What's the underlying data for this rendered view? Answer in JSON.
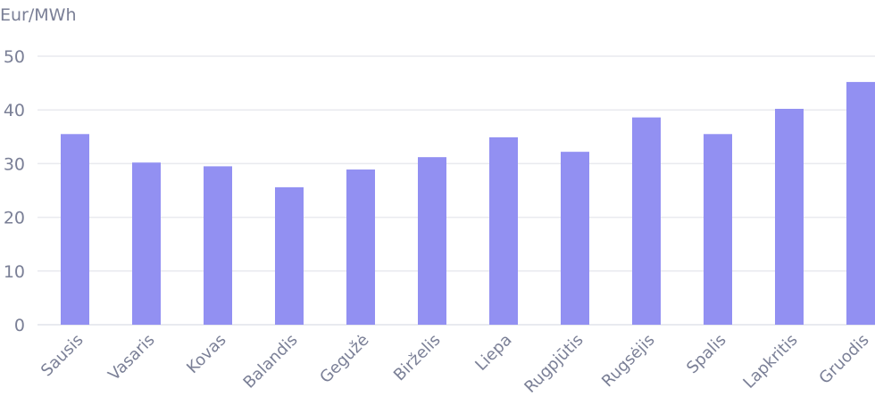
{
  "chart_data": {
    "type": "bar",
    "ylabel": "Eur/MWh",
    "ylim": [
      0,
      50
    ],
    "yticks": [
      "0",
      "10",
      "20",
      "30",
      "40",
      "50"
    ],
    "grid": true,
    "categories": [
      "Sausis",
      "Vasaris",
      "Kovas",
      "Balandis",
      "Gegužė",
      "Birželis",
      "Liepa",
      "Rugpjūtis",
      "Rugsėjis",
      "Spalis",
      "Lapkritis",
      "Gruodis"
    ],
    "values": [
      35.5,
      30.2,
      29.5,
      25.6,
      28.9,
      31.2,
      34.9,
      32.2,
      38.6,
      35.5,
      40.2,
      45.2
    ],
    "bar_color": "#9290f2"
  }
}
